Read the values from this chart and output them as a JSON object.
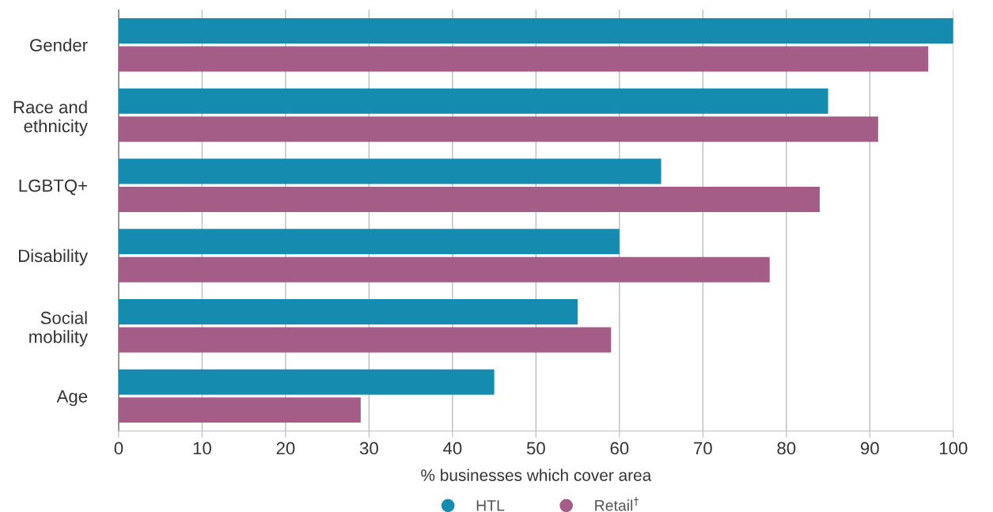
{
  "chart_data": {
    "type": "bar",
    "orientation": "horizontal",
    "xlabel": "% businesses which cover area",
    "categories": [
      "Gender",
      "Race and\nethnicity",
      "LGBTQ+",
      "Disability",
      "Social\nmobility",
      "Age"
    ],
    "series": [
      {
        "name": "HTL",
        "color": "#168bb0",
        "values": [
          100,
          85,
          65,
          60,
          55,
          45
        ]
      },
      {
        "name": "Retail$^{†}$",
        "color": "#a45d86",
        "values": [
          97,
          91,
          84,
          78,
          59,
          29
        ]
      }
    ],
    "xlim": [
      0,
      100
    ],
    "xticks": [
      0,
      10,
      20,
      30,
      40,
      50,
      60,
      70,
      80,
      90,
      100
    ],
    "grid": "x",
    "legend": "bottom",
    "marker": "circle"
  }
}
